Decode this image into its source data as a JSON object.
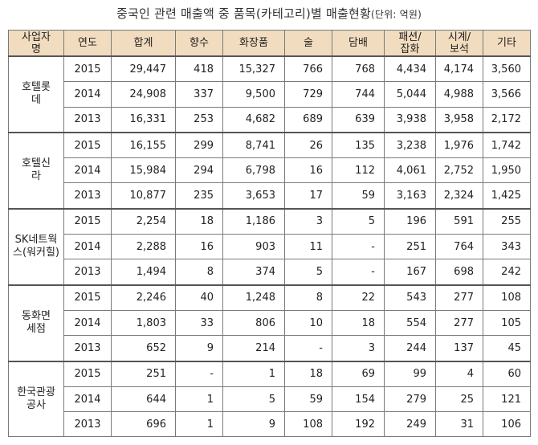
{
  "title": {
    "main": "중국인 관련 매출액 중 품목(카테고리)별 매출현황",
    "unit": "(단위: 억원)"
  },
  "columns": [
    "사업자명",
    "연도",
    "합계",
    "향수",
    "화장품",
    "술",
    "담배",
    "패션/잡화",
    "시계/보석",
    "기타"
  ],
  "companies": [
    {
      "name": "호텔롯데",
      "rows": [
        {
          "year": "2015",
          "values": [
            "29,447",
            "418",
            "15,327",
            "766",
            "768",
            "4,434",
            "4,174",
            "3,560"
          ]
        },
        {
          "year": "2014",
          "values": [
            "24,908",
            "337",
            "9,500",
            "729",
            "744",
            "5,044",
            "4,988",
            "3,566"
          ]
        },
        {
          "year": "2013",
          "values": [
            "16,331",
            "253",
            "4,682",
            "689",
            "639",
            "3,938",
            "3,958",
            "2,172"
          ]
        }
      ]
    },
    {
      "name": "호텔신라",
      "rows": [
        {
          "year": "2015",
          "values": [
            "16,155",
            "299",
            "8,741",
            "26",
            "135",
            "3,238",
            "1,976",
            "1,742"
          ]
        },
        {
          "year": "2014",
          "values": [
            "15,984",
            "294",
            "6,798",
            "16",
            "112",
            "4,061",
            "2,752",
            "1,950"
          ]
        },
        {
          "year": "2013",
          "values": [
            "10,877",
            "235",
            "3,653",
            "17",
            "59",
            "3,163",
            "2,324",
            "1,425"
          ]
        }
      ]
    },
    {
      "name": "SK네트웍스(워커힐)",
      "rows": [
        {
          "year": "2015",
          "values": [
            "2,254",
            "18",
            "1,186",
            "3",
            "5",
            "196",
            "591",
            "255"
          ]
        },
        {
          "year": "2014",
          "values": [
            "2,288",
            "16",
            "903",
            "11",
            "-",
            "251",
            "764",
            "343"
          ]
        },
        {
          "year": "2013",
          "values": [
            "1,494",
            "8",
            "374",
            "5",
            "-",
            "167",
            "698",
            "242"
          ]
        }
      ]
    },
    {
      "name": "동화면세점",
      "rows": [
        {
          "year": "2015",
          "values": [
            "2,246",
            "40",
            "1,248",
            "8",
            "22",
            "543",
            "277",
            "108"
          ]
        },
        {
          "year": "2014",
          "values": [
            "1,803",
            "33",
            "806",
            "10",
            "18",
            "554",
            "277",
            "105"
          ]
        },
        {
          "year": "2013",
          "values": [
            "652",
            "9",
            "214",
            "-",
            "3",
            "244",
            "137",
            "45"
          ]
        }
      ]
    },
    {
      "name": "한국관광공사",
      "rows": [
        {
          "year": "2015",
          "values": [
            "251",
            "-",
            "1",
            "18",
            "69",
            "99",
            "4",
            "60"
          ]
        },
        {
          "year": "2014",
          "values": [
            "644",
            "1",
            "5",
            "59",
            "154",
            "279",
            "25",
            "121"
          ]
        },
        {
          "year": "2013",
          "values": [
            "696",
            "1",
            "9",
            "108",
            "192",
            "249",
            "31",
            "106"
          ]
        }
      ]
    }
  ]
}
